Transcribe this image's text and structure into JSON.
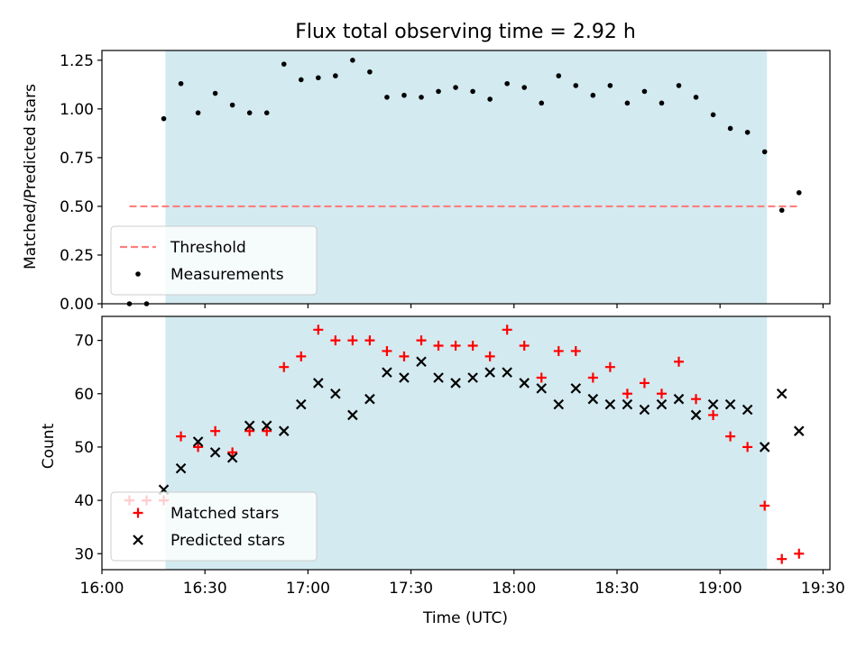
{
  "chart_data": [
    {
      "type": "scatter",
      "title": "Flux total observing time = 2.92 h",
      "xlabel": "",
      "ylabel": "Matched/Predicted stars",
      "ylim": [
        0,
        1.3
      ],
      "yticks": [
        "0.00",
        "0.25",
        "0.50",
        "0.75",
        "1.00",
        "1.25"
      ],
      "grid": false,
      "legend_position": "lower-left",
      "shaded_interval": [
        "16:18:30",
        "19:13:40"
      ],
      "shade_color": "#d3eaf0",
      "threshold": {
        "name": "Threshold",
        "y": 0.5,
        "x_start": "16:08",
        "x_end": "19:23",
        "color": "#ff7f7f",
        "style": "dashed"
      },
      "series": [
        {
          "name": "Measurements",
          "marker": "dot",
          "color": "#000000",
          "x": [
            "16:08",
            "16:13",
            "16:18",
            "16:23",
            "16:28",
            "16:33",
            "16:38",
            "16:43",
            "16:48",
            "16:53",
            "16:58",
            "17:03",
            "17:08",
            "17:13",
            "17:18",
            "17:23",
            "17:28",
            "17:33",
            "17:38",
            "17:43",
            "17:48",
            "17:53",
            "17:58",
            "18:03",
            "18:08",
            "18:13",
            "18:18",
            "18:23",
            "18:28",
            "18:33",
            "18:38",
            "18:43",
            "18:48",
            "18:53",
            "18:58",
            "19:03",
            "19:08",
            "19:13",
            "19:18",
            "19:23"
          ],
          "y": [
            0.0,
            0.0,
            0.95,
            1.13,
            0.98,
            1.08,
            1.02,
            0.98,
            0.98,
            1.23,
            1.15,
            1.16,
            1.17,
            1.25,
            1.19,
            1.06,
            1.07,
            1.06,
            1.09,
            1.11,
            1.09,
            1.05,
            1.13,
            1.11,
            1.03,
            1.17,
            1.12,
            1.07,
            1.12,
            1.03,
            1.09,
            1.03,
            1.12,
            1.06,
            0.97,
            0.9,
            0.88,
            0.78,
            0.48,
            0.57
          ]
        }
      ]
    },
    {
      "type": "scatter",
      "title": "",
      "xlabel": "Time (UTC)",
      "ylabel": "Count",
      "ylim": [
        27,
        74.5
      ],
      "yticks": [
        "30",
        "40",
        "50",
        "60",
        "70"
      ],
      "xlim": [
        "16:00",
        "19:32"
      ],
      "xticks": [
        "16:00",
        "16:30",
        "17:00",
        "17:30",
        "18:00",
        "18:30",
        "19:00",
        "19:30"
      ],
      "grid": false,
      "legend_position": "lower-left",
      "shaded_interval": [
        "16:18:30",
        "19:13:40"
      ],
      "shade_color": "#d3eaf0",
      "series": [
        {
          "name": "Matched stars",
          "marker": "plus",
          "color": "#ff0000",
          "x": [
            "16:08",
            "16:13",
            "16:18",
            "16:23",
            "16:28",
            "16:33",
            "16:38",
            "16:43",
            "16:48",
            "16:53",
            "16:58",
            "17:03",
            "17:08",
            "17:13",
            "17:18",
            "17:23",
            "17:28",
            "17:33",
            "17:38",
            "17:43",
            "17:48",
            "17:53",
            "17:58",
            "18:03",
            "18:08",
            "18:13",
            "18:18",
            "18:23",
            "18:28",
            "18:33",
            "18:38",
            "18:43",
            "18:48",
            "18:53",
            "18:58",
            "19:03",
            "19:08",
            "19:13",
            "19:18",
            "19:23"
          ],
          "y": [
            40,
            40,
            40,
            52,
            50,
            53,
            49,
            53,
            53,
            65,
            67,
            72,
            70,
            70,
            70,
            68,
            67,
            70,
            69,
            69,
            69,
            67,
            72,
            69,
            63,
            68,
            68,
            63,
            65,
            60,
            62,
            60,
            66,
            59,
            56,
            52,
            50,
            39,
            29,
            30
          ]
        },
        {
          "name": "Predicted stars",
          "marker": "x",
          "color": "#000000",
          "x": [
            "16:18",
            "16:23",
            "16:28",
            "16:33",
            "16:38",
            "16:43",
            "16:48",
            "16:53",
            "16:58",
            "17:03",
            "17:08",
            "17:13",
            "17:18",
            "17:23",
            "17:28",
            "17:33",
            "17:38",
            "17:43",
            "17:48",
            "17:53",
            "17:58",
            "18:03",
            "18:08",
            "18:13",
            "18:18",
            "18:23",
            "18:28",
            "18:33",
            "18:38",
            "18:43",
            "18:48",
            "18:53",
            "18:58",
            "19:03",
            "19:08",
            "19:13",
            "19:18",
            "19:23"
          ],
          "y": [
            42,
            46,
            51,
            49,
            48,
            54,
            54,
            53,
            58,
            62,
            60,
            56,
            59,
            64,
            63,
            66,
            63,
            62,
            63,
            64,
            64,
            62,
            61,
            58,
            61,
            59,
            58,
            58,
            57,
            58,
            59,
            56,
            58,
            58,
            57,
            50,
            60,
            53
          ]
        }
      ]
    }
  ]
}
